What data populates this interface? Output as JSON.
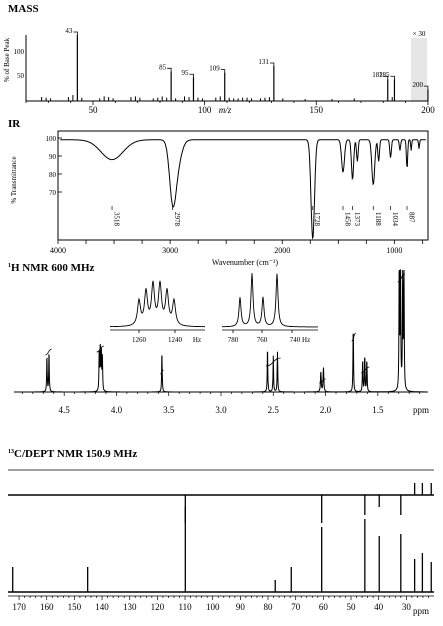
{
  "sections": {
    "mass_title": "MASS",
    "ir_title": "IR",
    "hnmr_title_sup": "1",
    "hnmr_title": "H NMR 600 MHz",
    "cnmr_title_sup": "13",
    "cnmr_title": "C/DEPT NMR 150.9 MHz"
  },
  "chart_data": [
    {
      "type": "bar",
      "name": "mass",
      "title": "MASS",
      "xlabel": "m/z",
      "ylabel": "% of Base Peak",
      "xlim": [
        20,
        200
      ],
      "ylim": [
        0,
        100
      ],
      "x_ticks": [
        "50",
        "100",
        "150",
        "200"
      ],
      "y_ticks": [
        "100",
        "50"
      ],
      "inset_label": "× 30",
      "peaks": [
        {
          "mz": 43,
          "rel": 100,
          "label": "43"
        },
        {
          "mz": 85,
          "rel": 45,
          "label": "85"
        },
        {
          "mz": 95,
          "rel": 36,
          "label": "95"
        },
        {
          "mz": 109,
          "rel": 43,
          "label": "109"
        },
        {
          "mz": 131,
          "rel": 53,
          "label": "131"
        },
        {
          "mz": 182,
          "rel": 33,
          "label": "182"
        },
        {
          "mz": 185,
          "rel": 33,
          "label": "185"
        },
        {
          "mz": 200,
          "rel": 18,
          "label": "200"
        }
      ]
    },
    {
      "type": "line",
      "name": "ir",
      "title": "IR",
      "xlabel": "Wavenumber (cm⁻¹)",
      "ylabel": "% Transmittance",
      "xlim": [
        4000,
        700
      ],
      "y_ticks": [
        "100",
        "90",
        "80",
        "70"
      ],
      "x_ticks": [
        "4000",
        "3000",
        "2000",
        "1000"
      ],
      "band_labels": [
        "3518",
        "2978",
        "1728",
        "1458",
        "1373",
        "1188",
        "1034",
        "887"
      ]
    },
    {
      "type": "line",
      "name": "hnmr",
      "title": "1H NMR 600 MHz",
      "xlabel": "ppm",
      "xlim": [
        4.98,
        1.02
      ],
      "x_ticks": [
        "4.5",
        "4.0",
        "3.5",
        "3.0",
        "2.5",
        "2.0",
        "1.5"
      ],
      "inset1_ticks": [
        "1260",
        "1240",
        "Hz"
      ],
      "inset2_ticks": [
        "780",
        "760",
        "740 Hz"
      ]
    },
    {
      "type": "bar",
      "name": "cnmr",
      "title": "13C/DEPT NMR 150.9 MHz",
      "xlabel": "ppm",
      "xlim": [
        174,
        20
      ],
      "x_ticks": [
        "170",
        "160",
        "150",
        "140",
        "130",
        "120",
        "110",
        "100",
        "90",
        "80",
        "70",
        "60",
        "50",
        "40",
        "30"
      ],
      "peaks_ppm": [
        172.3,
        145.2,
        109.9,
        77.4,
        71.6,
        60.6,
        45.0,
        39.8,
        32.0,
        27.0,
        24.2,
        21.0
      ],
      "ch_peaks_ppm": [
        109.9,
        60.6,
        45.0,
        39.8,
        32.0
      ],
      "ch3_up_ppm": [
        27.0,
        24.2,
        21.0
      ]
    }
  ]
}
